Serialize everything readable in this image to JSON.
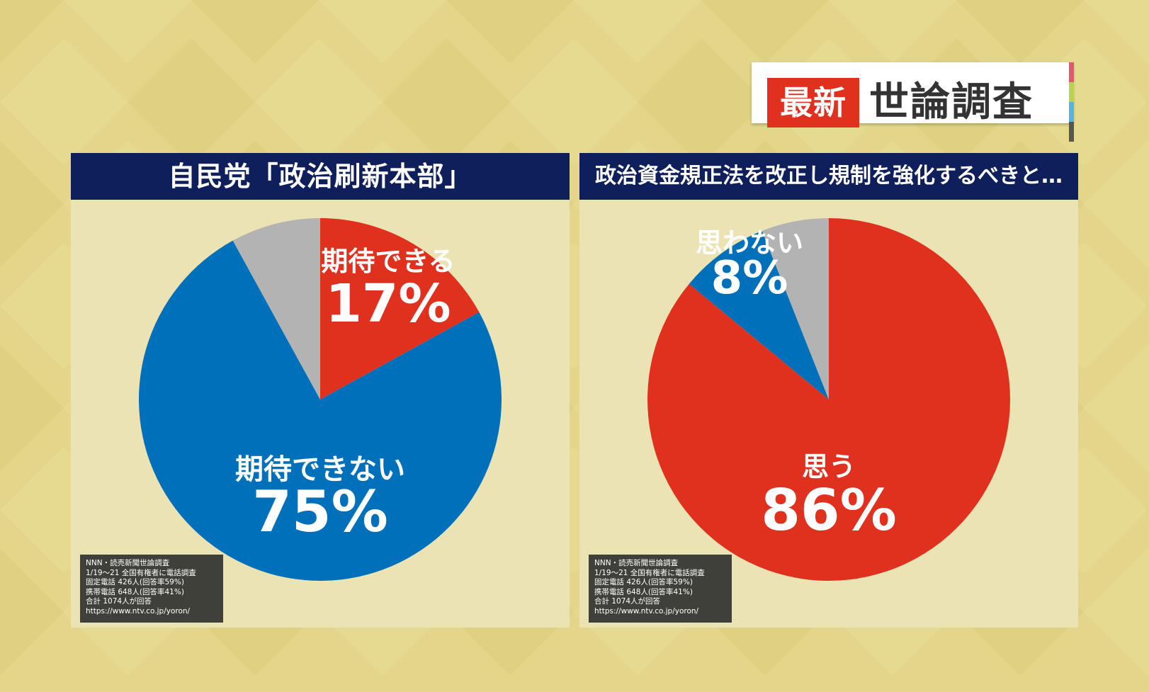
{
  "header": {
    "badge_red": "最新",
    "badge_text": "世論調査"
  },
  "colors": {
    "red": "#e0301e",
    "blue": "#0070bb",
    "gray": "#b3b3b3",
    "title_bg": "#0f1f5c",
    "background": "#e3d68a",
    "stripes": [
      "#e8566b",
      "#b9d34a",
      "#4fb8e2",
      "#555555"
    ]
  },
  "panels": [
    {
      "title": "自民党「政治刷新本部」",
      "source_lines": [
        "NNN・読売新聞世論調査",
        "1/19～21 全国有権者に電話調査",
        "固定電話 426人(回答率59%)",
        "携帯電話 648人(回答率41%)",
        "合計 1074人が回答",
        "https://www.ntv.co.jp/yoron/"
      ],
      "labels": [
        {
          "name": "期待できる",
          "value": "17%"
        },
        {
          "name": "期待できない",
          "value": "75%"
        }
      ]
    },
    {
      "title": "政治資金規正法を改正し規制を強化するべきと…",
      "source_lines": [
        "NNN・読売新聞世論調査",
        "1/19～21 全国有権者に電話調査",
        "固定電話 426人(回答率59%)",
        "携帯電話 648人(回答率41%)",
        "合計 1074人が回答",
        "https://www.ntv.co.jp/yoron/"
      ],
      "labels": [
        {
          "name": "思わない",
          "value": "8%"
        },
        {
          "name": "思う",
          "value": "86%"
        }
      ]
    }
  ],
  "chart_data": [
    {
      "type": "pie",
      "title": "自民党「政治刷新本部」",
      "slices": [
        {
          "label": "期待できる",
          "value": 17,
          "color": "#e0301e"
        },
        {
          "label": "期待できない",
          "value": 75,
          "color": "#0070bb"
        },
        {
          "label": "",
          "value": 8,
          "color": "#b3b3b3"
        }
      ]
    },
    {
      "type": "pie",
      "title": "政治資金規正法を改正し規制を強化するべきと…",
      "slices": [
        {
          "label": "思う",
          "value": 86,
          "color": "#e0301e"
        },
        {
          "label": "思わない",
          "value": 8,
          "color": "#0070bb"
        },
        {
          "label": "",
          "value": 6,
          "color": "#b3b3b3"
        }
      ]
    }
  ]
}
